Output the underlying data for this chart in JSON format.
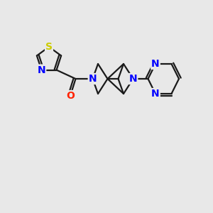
{
  "background_color": "#e8e8e8",
  "bond_color": "#1a1a1a",
  "bond_width": 1.6,
  "atom_colors": {
    "N": "#0000ff",
    "S": "#cccc00",
    "O": "#ff2200",
    "C": "#1a1a1a"
  },
  "font_size_atom": 10
}
